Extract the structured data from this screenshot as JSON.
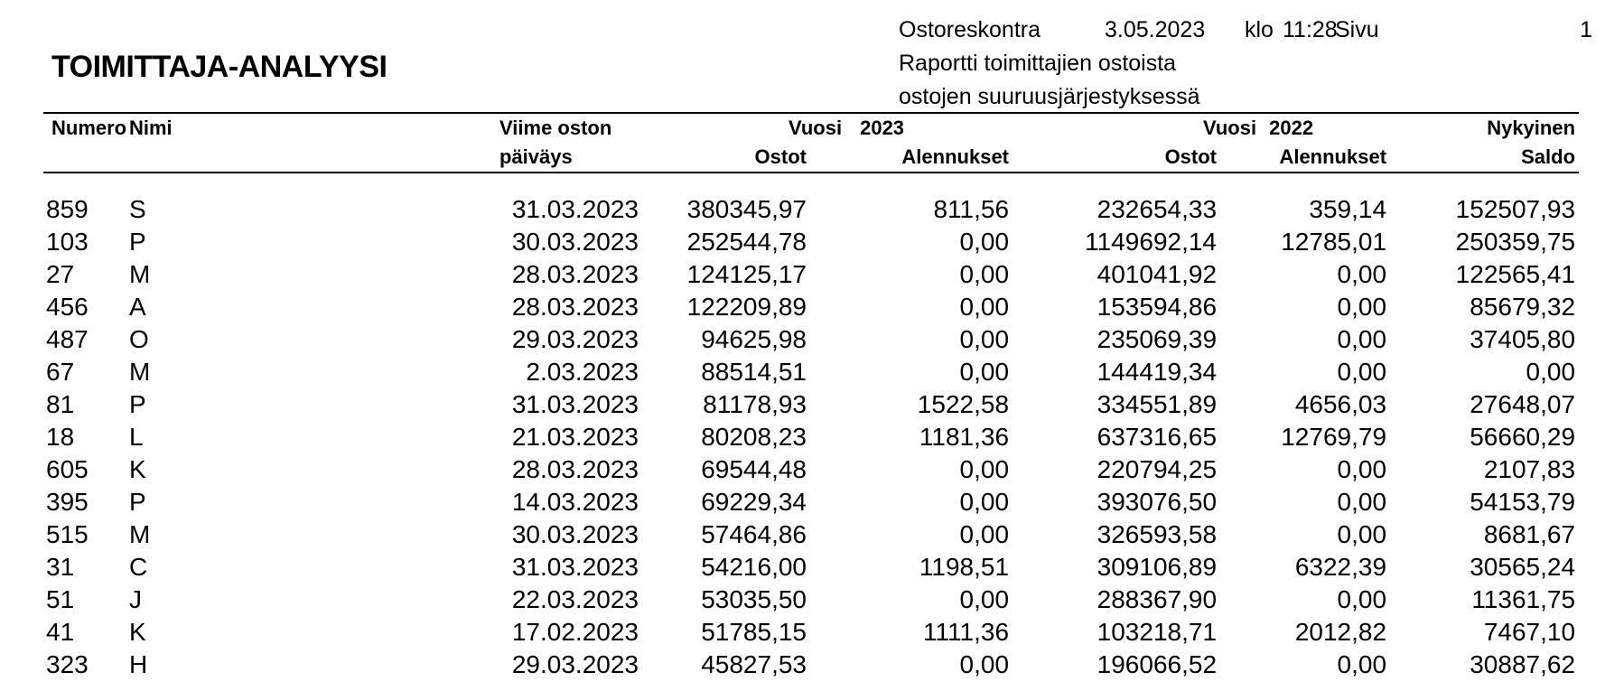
{
  "report_header": {
    "module": "Ostoreskontra",
    "date": "3.05.2023",
    "klo_label": "klo",
    "time": "11:28",
    "page_label": "Sivu",
    "page_number": "1",
    "subtitle_line1": "Raportti toimittajien ostoista",
    "subtitle_line2": "ostojen suuruusjärjestyksessä"
  },
  "title": "TOIMITTAJA-ANALYYSI",
  "colors": {
    "text": "#000000",
    "background": "#ffffff",
    "rule": "#000000"
  },
  "table": {
    "headers": {
      "numero": "Numero",
      "nimi": "Nimi",
      "viime_oston": "Viime oston",
      "paivays": "päiväys",
      "vuosi_label": "Vuosi",
      "year_2023": "2023",
      "year_2022": "2022",
      "ostot_2023": "Ostot",
      "alennukset_2023": "Alennukset",
      "ostot_2022": "Ostot",
      "alennukset_2022": "Alennukset",
      "nykyinen": "Nykyinen",
      "saldo": "Saldo"
    },
    "rows": [
      {
        "numero": "859",
        "nimi": "S",
        "paivays": "31.03.2023",
        "ostot_2023": "380345,97",
        "alennukset_2023": "811,56",
        "ostot_2022": "232654,33",
        "alennukset_2022": "359,14",
        "saldo": "152507,93"
      },
      {
        "numero": "103",
        "nimi": "P",
        "paivays": "30.03.2023",
        "ostot_2023": "252544,78",
        "alennukset_2023": "0,00",
        "ostot_2022": "1149692,14",
        "alennukset_2022": "12785,01",
        "saldo": "250359,75"
      },
      {
        "numero": "27",
        "nimi": "M",
        "paivays": "28.03.2023",
        "ostot_2023": "124125,17",
        "alennukset_2023": "0,00",
        "ostot_2022": "401041,92",
        "alennukset_2022": "0,00",
        "saldo": "122565,41"
      },
      {
        "numero": "456",
        "nimi": "A",
        "paivays": "28.03.2023",
        "ostot_2023": "122209,89",
        "alennukset_2023": "0,00",
        "ostot_2022": "153594,86",
        "alennukset_2022": "0,00",
        "saldo": "85679,32"
      },
      {
        "numero": "487",
        "nimi": "O",
        "paivays": "29.03.2023",
        "ostot_2023": "94625,98",
        "alennukset_2023": "0,00",
        "ostot_2022": "235069,39",
        "alennukset_2022": "0,00",
        "saldo": "37405,80"
      },
      {
        "numero": "67",
        "nimi": "M",
        "paivays": "2.03.2023",
        "ostot_2023": "88514,51",
        "alennukset_2023": "0,00",
        "ostot_2022": "144419,34",
        "alennukset_2022": "0,00",
        "saldo": "0,00"
      },
      {
        "numero": "81",
        "nimi": "P",
        "paivays": "31.03.2023",
        "ostot_2023": "81178,93",
        "alennukset_2023": "1522,58",
        "ostot_2022": "334551,89",
        "alennukset_2022": "4656,03",
        "saldo": "27648,07"
      },
      {
        "numero": "18",
        "nimi": "L",
        "paivays": "21.03.2023",
        "ostot_2023": "80208,23",
        "alennukset_2023": "1181,36",
        "ostot_2022": "637316,65",
        "alennukset_2022": "12769,79",
        "saldo": "56660,29"
      },
      {
        "numero": "605",
        "nimi": "K",
        "paivays": "28.03.2023",
        "ostot_2023": "69544,48",
        "alennukset_2023": "0,00",
        "ostot_2022": "220794,25",
        "alennukset_2022": "0,00",
        "saldo": "2107,83"
      },
      {
        "numero": "395",
        "nimi": "P",
        "paivays": "14.03.2023",
        "ostot_2023": "69229,34",
        "alennukset_2023": "0,00",
        "ostot_2022": "393076,50",
        "alennukset_2022": "0,00",
        "saldo": "54153,79"
      },
      {
        "numero": "515",
        "nimi": "M",
        "paivays": "30.03.2023",
        "ostot_2023": "57464,86",
        "alennukset_2023": "0,00",
        "ostot_2022": "326593,58",
        "alennukset_2022": "0,00",
        "saldo": "8681,67"
      },
      {
        "numero": "31",
        "nimi": "C",
        "paivays": "31.03.2023",
        "ostot_2023": "54216,00",
        "alennukset_2023": "1198,51",
        "ostot_2022": "309106,89",
        "alennukset_2022": "6322,39",
        "saldo": "30565,24"
      },
      {
        "numero": "51",
        "nimi": "J",
        "paivays": "22.03.2023",
        "ostot_2023": "53035,50",
        "alennukset_2023": "0,00",
        "ostot_2022": "288367,90",
        "alennukset_2022": "0,00",
        "saldo": "11361,75"
      },
      {
        "numero": "41",
        "nimi": "K",
        "paivays": "17.02.2023",
        "ostot_2023": "51785,15",
        "alennukset_2023": "1111,36",
        "ostot_2022": "103218,71",
        "alennukset_2022": "2012,82",
        "saldo": "7467,10"
      },
      {
        "numero": "323",
        "nimi": "H",
        "paivays": "29.03.2023",
        "ostot_2023": "45827,53",
        "alennukset_2023": "0,00",
        "ostot_2022": "196066,52",
        "alennukset_2022": "0,00",
        "saldo": "30887,62"
      }
    ]
  }
}
